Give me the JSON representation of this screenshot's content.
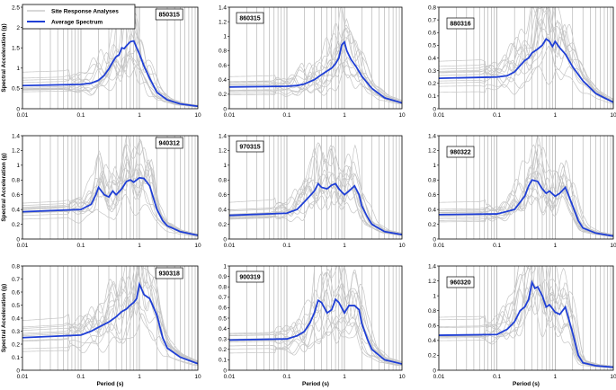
{
  "figure": {
    "x_axis_label": "Period (s)",
    "y_axis_label": "Spectral Acceleration (g)",
    "legend": {
      "site": "Site Response Analyses",
      "avg": "Average Spectrum"
    },
    "colors": {
      "average": "#1f3fd6",
      "site": "#c6c6c6",
      "grid": "#9a9a9a",
      "frame": "#000000"
    }
  },
  "chart_data": [
    {
      "type": "line",
      "id": "850315",
      "xscale": "log",
      "xlim": [
        0.01,
        10
      ],
      "ylim": [
        0,
        2.5
      ],
      "yticks": [
        0,
        0.5,
        1,
        1.5,
        2,
        2.5
      ],
      "avg_x": [
        0.01,
        0.1,
        0.15,
        0.2,
        0.25,
        0.3,
        0.35,
        0.4,
        0.45,
        0.5,
        0.55,
        0.6,
        0.7,
        0.8,
        0.9,
        1.0,
        1.2,
        1.5,
        2,
        3,
        5,
        10
      ],
      "avg_y": [
        0.57,
        0.6,
        0.63,
        0.7,
        0.82,
        0.98,
        1.15,
        1.28,
        1.33,
        1.5,
        1.48,
        1.55,
        1.65,
        1.67,
        1.5,
        1.35,
        1.05,
        0.75,
        0.4,
        0.22,
        0.12,
        0.06
      ],
      "site_count": 12
    },
    {
      "type": "line",
      "id": "860315",
      "xscale": "log",
      "xlim": [
        0.01,
        10
      ],
      "ylim": [
        0,
        1.4
      ],
      "yticks": [
        0,
        0.2,
        0.4,
        0.6,
        0.8,
        1,
        1.2,
        1.4
      ],
      "avg_x": [
        0.01,
        0.1,
        0.15,
        0.2,
        0.3,
        0.4,
        0.5,
        0.6,
        0.7,
        0.8,
        0.9,
        1.0,
        1.1,
        1.3,
        1.6,
        2,
        3,
        5,
        10
      ],
      "avg_y": [
        0.3,
        0.31,
        0.32,
        0.34,
        0.4,
        0.47,
        0.52,
        0.56,
        0.62,
        0.7,
        0.88,
        0.92,
        0.8,
        0.68,
        0.58,
        0.45,
        0.28,
        0.15,
        0.08
      ],
      "site_count": 12
    },
    {
      "type": "line",
      "id": "880316",
      "xscale": "log",
      "xlim": [
        0.01,
        10
      ],
      "ylim": [
        0,
        0.8
      ],
      "yticks": [
        0,
        0.1,
        0.2,
        0.3,
        0.4,
        0.5,
        0.6,
        0.7,
        0.8
      ],
      "avg_x": [
        0.01,
        0.1,
        0.15,
        0.2,
        0.25,
        0.3,
        0.35,
        0.4,
        0.5,
        0.6,
        0.7,
        0.8,
        0.9,
        1.0,
        1.2,
        1.5,
        2,
        3,
        5,
        10
      ],
      "avg_y": [
        0.24,
        0.25,
        0.26,
        0.29,
        0.34,
        0.38,
        0.4,
        0.44,
        0.47,
        0.5,
        0.55,
        0.53,
        0.49,
        0.53,
        0.48,
        0.43,
        0.33,
        0.22,
        0.12,
        0.05
      ],
      "site_count": 12
    },
    {
      "type": "line",
      "id": "940312",
      "xscale": "log",
      "xlim": [
        0.01,
        10
      ],
      "ylim": [
        0,
        1.4
      ],
      "yticks": [
        0,
        0.2,
        0.4,
        0.6,
        0.8,
        1,
        1.2,
        1.4
      ],
      "avg_x": [
        0.01,
        0.1,
        0.15,
        0.18,
        0.2,
        0.25,
        0.3,
        0.35,
        0.4,
        0.5,
        0.6,
        0.7,
        0.8,
        1.0,
        1.2,
        1.5,
        2,
        2.5,
        3,
        5,
        10
      ],
      "avg_y": [
        0.37,
        0.4,
        0.47,
        0.6,
        0.7,
        0.6,
        0.57,
        0.65,
        0.6,
        0.68,
        0.78,
        0.8,
        0.77,
        0.83,
        0.82,
        0.72,
        0.4,
        0.25,
        0.18,
        0.1,
        0.05
      ],
      "site_count": 12
    },
    {
      "type": "line",
      "id": "970315",
      "xscale": "log",
      "xlim": [
        0.01,
        10
      ],
      "ylim": [
        0,
        1.4
      ],
      "yticks": [
        0,
        0.2,
        0.4,
        0.6,
        0.8,
        1,
        1.2,
        1.4
      ],
      "avg_x": [
        0.01,
        0.1,
        0.15,
        0.2,
        0.3,
        0.35,
        0.4,
        0.5,
        0.6,
        0.7,
        0.8,
        1.0,
        1.2,
        1.5,
        1.8,
        2,
        2.5,
        3,
        5,
        10
      ],
      "avg_y": [
        0.32,
        0.35,
        0.4,
        0.5,
        0.65,
        0.75,
        0.7,
        0.68,
        0.73,
        0.75,
        0.68,
        0.6,
        0.65,
        0.72,
        0.6,
        0.45,
        0.3,
        0.2,
        0.1,
        0.06
      ],
      "site_count": 12
    },
    {
      "type": "line",
      "id": "980322",
      "xscale": "log",
      "xlim": [
        0.01,
        10
      ],
      "ylim": [
        0,
        1.4
      ],
      "yticks": [
        0,
        0.2,
        0.4,
        0.6,
        0.8,
        1,
        1.2,
        1.4
      ],
      "avg_x": [
        0.01,
        0.1,
        0.2,
        0.3,
        0.35,
        0.4,
        0.5,
        0.6,
        0.7,
        0.8,
        1.0,
        1.2,
        1.5,
        2,
        2.5,
        3,
        5,
        10
      ],
      "avg_y": [
        0.33,
        0.34,
        0.4,
        0.58,
        0.72,
        0.8,
        0.78,
        0.68,
        0.62,
        0.65,
        0.58,
        0.62,
        0.7,
        0.45,
        0.25,
        0.15,
        0.08,
        0.04
      ],
      "site_count": 12
    },
    {
      "type": "line",
      "id": "930318",
      "xscale": "log",
      "xlim": [
        0.01,
        10
      ],
      "ylim": [
        0,
        0.8
      ],
      "yticks": [
        0,
        0.1,
        0.2,
        0.3,
        0.4,
        0.5,
        0.6,
        0.7,
        0.8
      ],
      "avg_x": [
        0.01,
        0.1,
        0.15,
        0.2,
        0.3,
        0.4,
        0.5,
        0.6,
        0.7,
        0.8,
        0.9,
        1.0,
        1.1,
        1.2,
        1.5,
        2,
        2.5,
        3,
        5,
        10
      ],
      "avg_y": [
        0.25,
        0.27,
        0.3,
        0.33,
        0.37,
        0.41,
        0.45,
        0.47,
        0.5,
        0.52,
        0.55,
        0.66,
        0.62,
        0.58,
        0.55,
        0.42,
        0.25,
        0.17,
        0.1,
        0.05
      ],
      "site_count": 12
    },
    {
      "type": "line",
      "id": "900319",
      "xscale": "log",
      "xlim": [
        0.01,
        10
      ],
      "ylim": [
        0,
        1.0
      ],
      "yticks": [
        0,
        0.1,
        0.2,
        0.3,
        0.4,
        0.5,
        0.6,
        0.7,
        0.8,
        0.9,
        1
      ],
      "avg_x": [
        0.01,
        0.1,
        0.15,
        0.2,
        0.25,
        0.3,
        0.35,
        0.4,
        0.5,
        0.6,
        0.7,
        0.8,
        1.0,
        1.2,
        1.5,
        1.8,
        2,
        2.5,
        3,
        5,
        10
      ],
      "avg_y": [
        0.29,
        0.3,
        0.33,
        0.37,
        0.45,
        0.55,
        0.67,
        0.65,
        0.55,
        0.58,
        0.68,
        0.65,
        0.55,
        0.62,
        0.62,
        0.58,
        0.45,
        0.3,
        0.2,
        0.1,
        0.06
      ],
      "site_count": 12
    },
    {
      "type": "line",
      "id": "960320",
      "xscale": "log",
      "xlim": [
        0.01,
        10
      ],
      "ylim": [
        0,
        1.4
      ],
      "yticks": [
        0,
        0.2,
        0.4,
        0.6,
        0.8,
        1,
        1.2,
        1.4
      ],
      "avg_x": [
        0.01,
        0.1,
        0.15,
        0.2,
        0.25,
        0.3,
        0.35,
        0.4,
        0.45,
        0.5,
        0.6,
        0.7,
        0.8,
        1.0,
        1.2,
        1.5,
        2,
        2.5,
        3,
        5,
        10
      ],
      "avg_y": [
        0.47,
        0.48,
        0.55,
        0.65,
        0.8,
        0.85,
        0.95,
        1.18,
        1.1,
        1.12,
        1.0,
        0.85,
        0.88,
        0.78,
        0.75,
        0.85,
        0.5,
        0.2,
        0.1,
        0.06,
        0.04
      ],
      "site_count": 12
    }
  ]
}
